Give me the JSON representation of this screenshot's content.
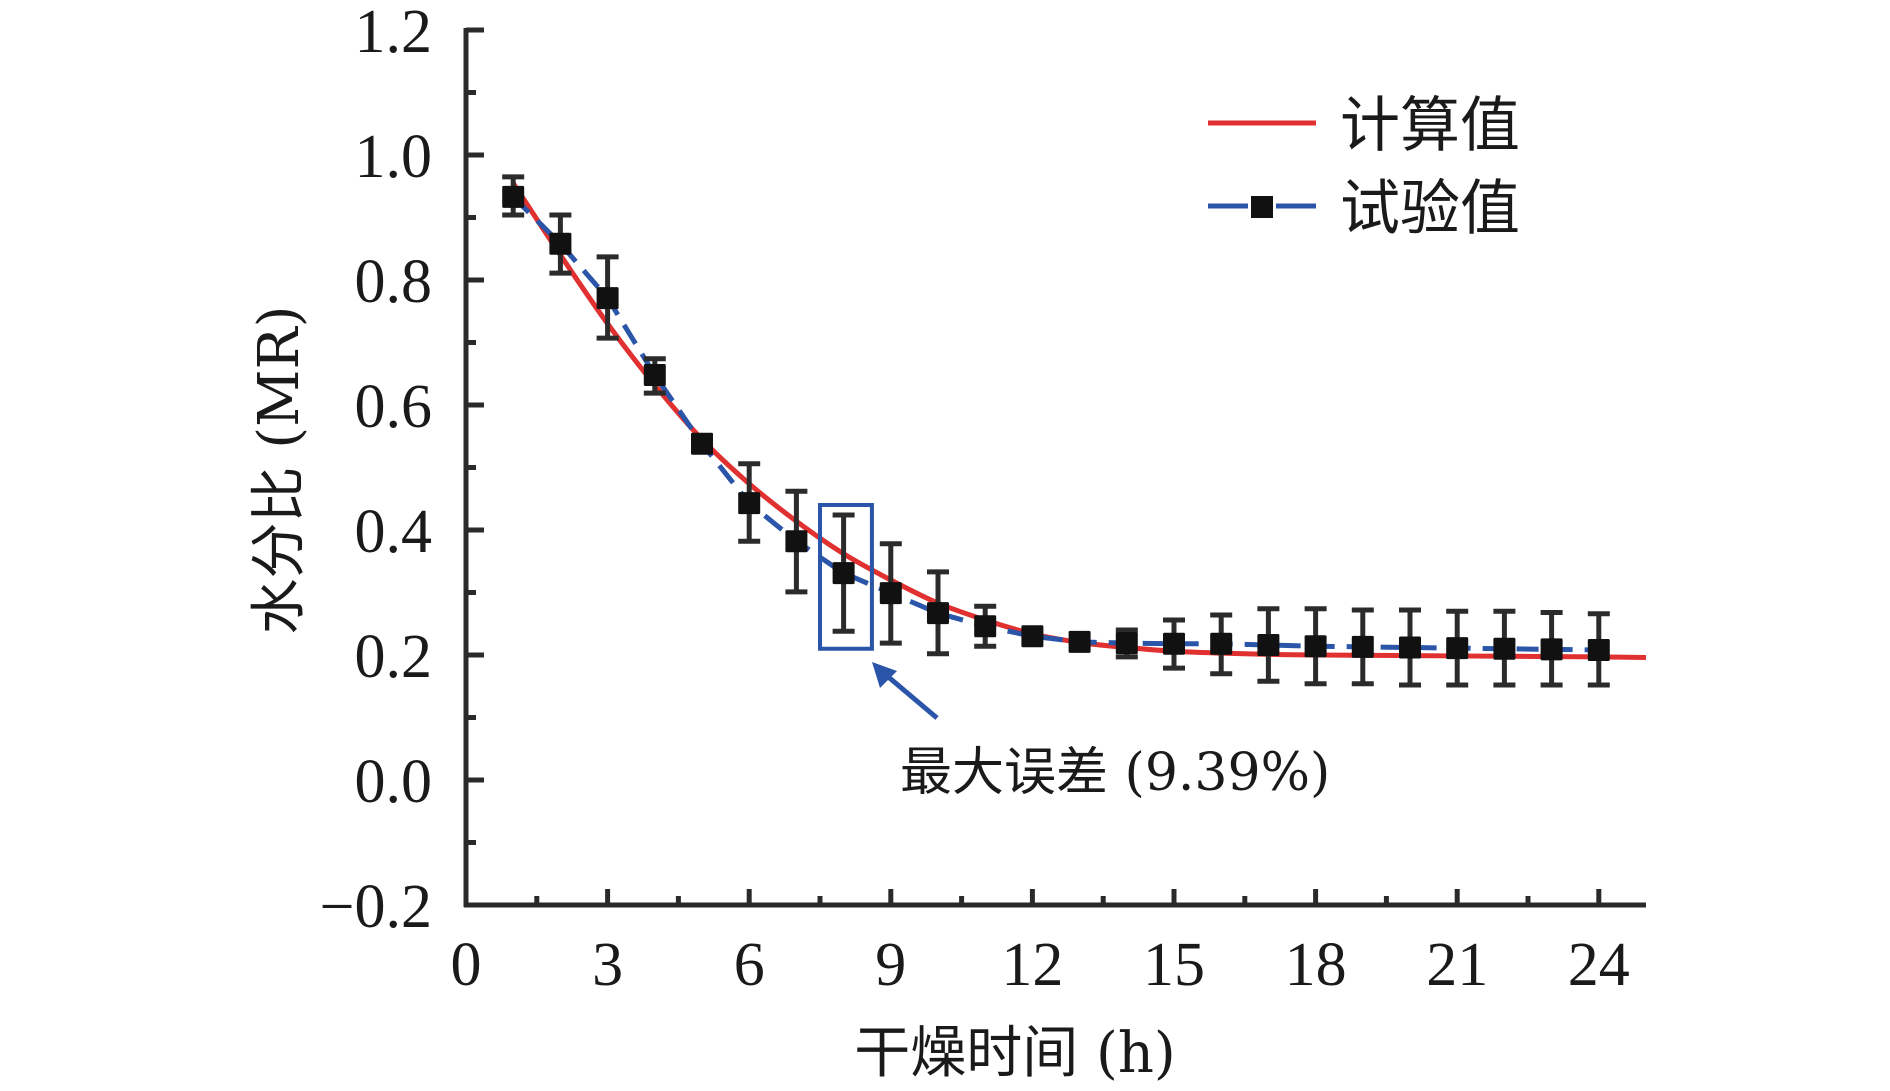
{
  "chart_data": {
    "type": "line",
    "title": "",
    "xlabel": "干燥时间 (h)",
    "ylabel": "水分比 (MR)",
    "xlim": [
      0,
      25
    ],
    "ylim": [
      -0.2,
      1.2
    ],
    "x_ticks": [
      0,
      3,
      6,
      9,
      12,
      15,
      18,
      21,
      24
    ],
    "x_tick_labels": [
      "0",
      "3",
      "6",
      "9",
      "12",
      "15",
      "18",
      "21",
      "24"
    ],
    "y_ticks": [
      -0.2,
      0.0,
      0.2,
      0.4,
      0.6,
      0.8,
      1.0,
      1.2
    ],
    "y_tick_labels": [
      "−0.2",
      "0.0",
      "0.2",
      "0.4",
      "0.6",
      "0.8",
      "1.0",
      "1.2"
    ],
    "grid": false,
    "legend_position": "top-right",
    "series": [
      {
        "name": "计算值",
        "style": "solid-line",
        "color": "#e03030",
        "x": [
          1,
          2,
          3,
          4,
          5,
          6,
          7,
          8,
          9,
          10,
          11,
          12,
          13,
          14,
          15,
          16,
          17,
          18,
          20,
          22,
          24,
          25
        ],
        "values": [
          0.955,
          0.84,
          0.73,
          0.632,
          0.545,
          0.474,
          0.414,
          0.362,
          0.32,
          0.283,
          0.256,
          0.234,
          0.22,
          0.212,
          0.206,
          0.203,
          0.201,
          0.2,
          0.199,
          0.198,
          0.197,
          0.196
        ]
      },
      {
        "name": "试验值",
        "style": "dashed-line-square-markers",
        "color": "#2a55a8",
        "marker_color": "#111111",
        "x": [
          1,
          2,
          3,
          4,
          5,
          6,
          7,
          8,
          9,
          10,
          11,
          12,
          13,
          14,
          15,
          16,
          17,
          18,
          19,
          20,
          21,
          22,
          23,
          24
        ],
        "values": [
          0.933,
          0.858,
          0.771,
          0.648,
          0.538,
          0.443,
          0.382,
          0.331,
          0.299,
          0.267,
          0.246,
          0.23,
          0.221,
          0.219,
          0.218,
          0.218,
          0.216,
          0.214,
          0.213,
          0.212,
          0.211,
          0.21,
          0.209,
          0.208
        ],
        "error_upper": [
          0.965,
          0.904,
          0.837,
          0.674,
          0.55,
          0.506,
          0.462,
          0.424,
          0.378,
          0.333,
          0.278,
          0.23,
          0.221,
          0.24,
          0.256,
          0.264,
          0.274,
          0.274,
          0.272,
          0.272,
          0.27,
          0.27,
          0.268,
          0.266
        ],
        "error_lower": [
          0.904,
          0.811,
          0.707,
          0.619,
          0.526,
          0.382,
          0.301,
          0.238,
          0.219,
          0.202,
          0.214,
          0.23,
          0.221,
          0.197,
          0.179,
          0.17,
          0.158,
          0.154,
          0.154,
          0.152,
          0.152,
          0.152,
          0.152,
          0.152
        ]
      }
    ],
    "annotations": [
      {
        "text": "最大误差 (9.39%)",
        "target_x": 8,
        "box_x_range": [
          7.5,
          8.6
        ],
        "box_y_range": [
          0.21,
          0.44
        ],
        "arrow_color": "#2a55a8"
      }
    ]
  }
}
